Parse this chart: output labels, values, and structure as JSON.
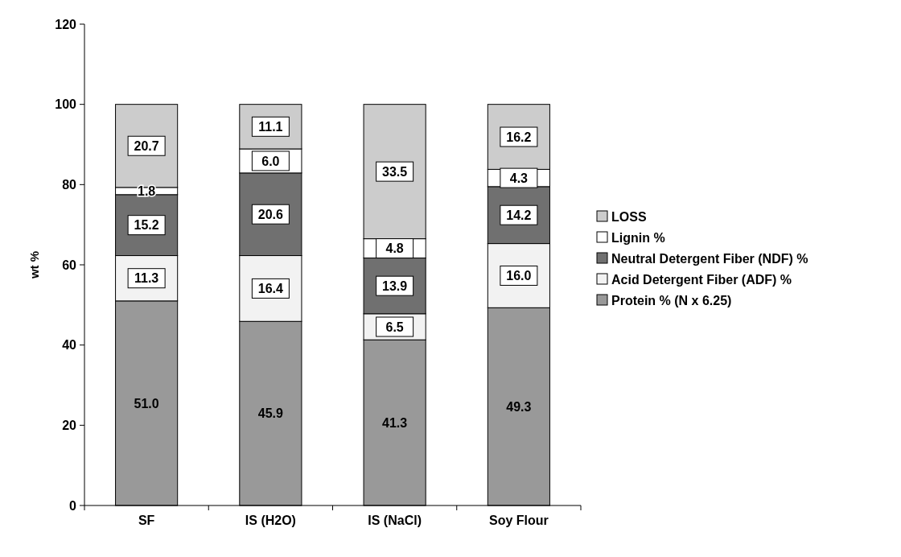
{
  "chart_data": {
    "type": "bar",
    "stacked": true,
    "ylabel": "wt %",
    "categories": [
      "SF",
      "IS (H2O)",
      "IS (NaCl)",
      "Soy Flour"
    ],
    "series": [
      {
        "name": "Protein % (N x 6.25)",
        "color": "#999999",
        "values": [
          51.0,
          45.9,
          41.3,
          49.3
        ],
        "value_labels": [
          "51.0",
          "45.9",
          "41.3",
          "49.3"
        ]
      },
      {
        "name": "Acid Detergent Fiber (ADF) %",
        "color": "#f2f2f2",
        "values": [
          11.3,
          16.4,
          6.5,
          16.0
        ],
        "value_labels": [
          "11.3",
          "16.4",
          "6.5",
          "16.0"
        ]
      },
      {
        "name": "Neutral Detergent Fiber (NDF) %",
        "color": "#707070",
        "values": [
          15.2,
          20.6,
          13.9,
          14.2
        ],
        "value_labels": [
          "15.2",
          "20.6",
          "13.9",
          "14.2"
        ]
      },
      {
        "name": "Lignin %",
        "color": "#ffffff",
        "values": [
          1.8,
          6.0,
          4.8,
          4.3
        ],
        "value_labels": [
          "1.8",
          "6.0",
          "4.8",
          "4.3"
        ]
      },
      {
        "name": "LOSS",
        "color": "#cccccc",
        "values": [
          20.7,
          11.1,
          33.5,
          16.2
        ],
        "value_labels": [
          "20.7",
          "11.1",
          "33.5",
          "16.2"
        ]
      }
    ],
    "ylim": [
      0,
      120
    ],
    "yticks": [
      0,
      20,
      40,
      60,
      80,
      100,
      120
    ],
    "legend": "right",
    "grid": false
  }
}
